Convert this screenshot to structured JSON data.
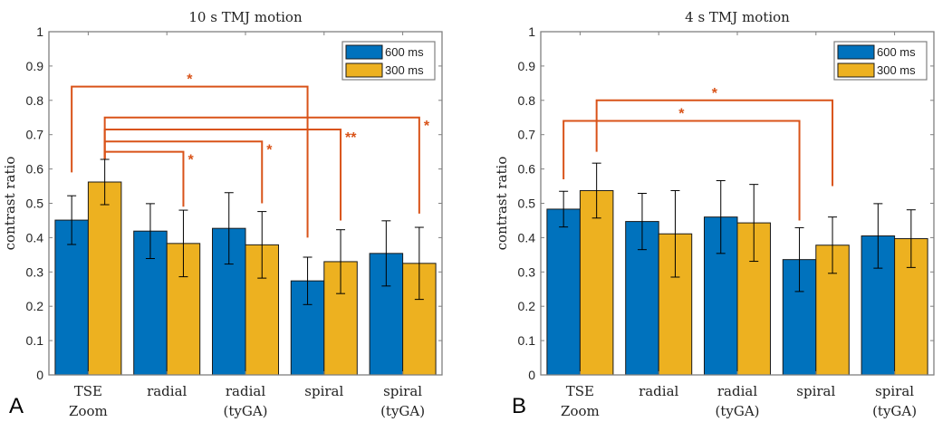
{
  "chart_data": [
    {
      "panel_label": "A",
      "type": "bar",
      "title": "10 s TMJ motion",
      "xlabel": "",
      "ylabel": "contrast ratio",
      "ylim": [
        0,
        1
      ],
      "yticks": [
        "0",
        "0.1",
        "0.2",
        "0.3",
        "0.4",
        "0.5",
        "0.6",
        "0.7",
        "0.8",
        "0.9",
        "1"
      ],
      "categories": [
        [
          "TSE",
          "Zoom"
        ],
        [
          "radial"
        ],
        [
          "radial",
          "(tyGA)"
        ],
        [
          "spiral"
        ],
        [
          "spiral",
          "(tyGA)"
        ]
      ],
      "legend": {
        "placement": "top-right",
        "entries": [
          "600 ms",
          "300 ms"
        ]
      },
      "series": [
        {
          "name": "600 ms",
          "color": "#0072BD",
          "values": [
            0.451,
            0.419,
            0.427,
            0.274,
            0.354
          ],
          "err": [
            0.071,
            0.08,
            0.104,
            0.069,
            0.095
          ]
        },
        {
          "name": "300 ms",
          "color": "#EDB120",
          "values": [
            0.562,
            0.383,
            0.379,
            0.33,
            0.325
          ],
          "err": [
            0.066,
            0.097,
            0.097,
            0.093,
            0.105
          ]
        }
      ],
      "significance": [
        {
          "from": [
            0,
            0
          ],
          "to": [
            3,
            0
          ],
          "level": 0.84,
          "label": "*",
          "left_end": 0.59,
          "right_end": 0.4
        },
        {
          "from": [
            0,
            1
          ],
          "to": [
            1,
            1
          ],
          "level": 0.65,
          "label": "*",
          "left_end": 0.63,
          "right_end": 0.49
        },
        {
          "from": [
            0,
            1
          ],
          "to": [
            2,
            1
          ],
          "level": 0.68,
          "label": "*",
          "left_end": 0.63,
          "right_end": 0.5
        },
        {
          "from": [
            0,
            1
          ],
          "to": [
            3,
            1
          ],
          "level": 0.715,
          "label": "**",
          "left_end": 0.63,
          "right_end": 0.45
        },
        {
          "from": [
            0,
            1
          ],
          "to": [
            4,
            1
          ],
          "level": 0.75,
          "label": "*",
          "left_end": 0.63,
          "right_end": 0.47
        }
      ]
    },
    {
      "panel_label": "B",
      "type": "bar",
      "title": "4 s TMJ motion",
      "xlabel": "",
      "ylabel": "contrast ratio",
      "ylim": [
        0,
        1
      ],
      "yticks": [
        "0",
        "0.1",
        "0.2",
        "0.3",
        "0.4",
        "0.5",
        "0.6",
        "0.7",
        "0.8",
        "0.9",
        "1"
      ],
      "categories": [
        [
          "TSE",
          "Zoom"
        ],
        [
          "radial"
        ],
        [
          "radial",
          "(tyGA)"
        ],
        [
          "spiral"
        ],
        [
          "spiral",
          "(tyGA)"
        ]
      ],
      "legend": {
        "placement": "top-right",
        "entries": [
          "600 ms",
          "300 ms"
        ]
      },
      "series": [
        {
          "name": "600 ms",
          "color": "#0072BD",
          "values": [
            0.483,
            0.447,
            0.46,
            0.336,
            0.405
          ],
          "err": [
            0.052,
            0.082,
            0.106,
            0.093,
            0.094
          ]
        },
        {
          "name": "300 ms",
          "color": "#EDB120",
          "values": [
            0.537,
            0.411,
            0.443,
            0.378,
            0.397
          ],
          "err": [
            0.08,
            0.126,
            0.112,
            0.082,
            0.084
          ]
        }
      ],
      "significance": [
        {
          "from": [
            0,
            0
          ],
          "to": [
            3,
            0
          ],
          "level": 0.74,
          "label": "*",
          "left_end": 0.57,
          "right_end": 0.45
        },
        {
          "from": [
            0,
            1
          ],
          "to": [
            3,
            1
          ],
          "level": 0.8,
          "label": "*",
          "left_end": 0.65,
          "right_end": 0.55
        }
      ]
    }
  ],
  "colors": {
    "bracket": "#D95319",
    "axis": "#808080",
    "errorbar": "#000000"
  }
}
